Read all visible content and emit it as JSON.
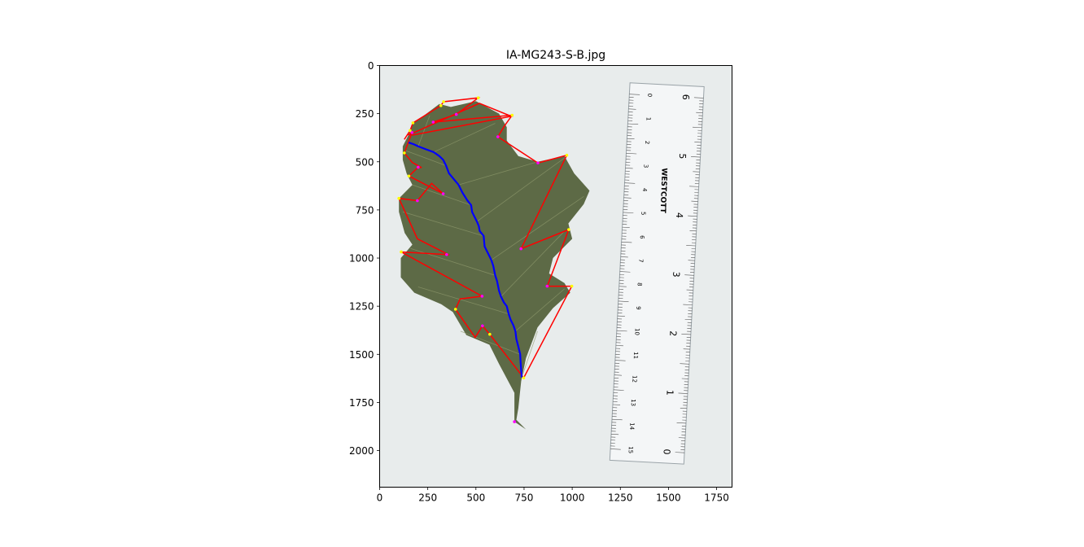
{
  "chart_data": {
    "type": "image",
    "title": "IA-MG243-S-B.jpg",
    "xlim": [
      0,
      1830
    ],
    "ylim": [
      2190,
      0
    ],
    "xticks": [
      0,
      250,
      500,
      750,
      1000,
      1250,
      1500,
      1750
    ],
    "yticks": [
      0,
      250,
      500,
      750,
      1000,
      1250,
      1500,
      1750,
      2000
    ],
    "grid": false,
    "leaf_outline": [
      [
        170,
        300
      ],
      [
        230,
        260
      ],
      [
        310,
        200
      ],
      [
        370,
        215
      ],
      [
        500,
        185
      ],
      [
        620,
        250
      ],
      [
        660,
        320
      ],
      [
        660,
        390
      ],
      [
        720,
        470
      ],
      [
        820,
        500
      ],
      [
        960,
        470
      ],
      [
        1010,
        560
      ],
      [
        1090,
        650
      ],
      [
        1060,
        720
      ],
      [
        980,
        820
      ],
      [
        1000,
        900
      ],
      [
        900,
        1000
      ],
      [
        880,
        1080
      ],
      [
        960,
        1130
      ],
      [
        990,
        1180
      ],
      [
        900,
        1260
      ],
      [
        820,
        1360
      ],
      [
        760,
        1520
      ],
      [
        735,
        1640
      ],
      [
        720,
        1780
      ],
      [
        710,
        1840
      ],
      [
        760,
        1890
      ],
      [
        700,
        1850
      ],
      [
        700,
        1700
      ],
      [
        620,
        1550
      ],
      [
        570,
        1450
      ],
      [
        450,
        1400
      ],
      [
        380,
        1280
      ],
      [
        320,
        1240
      ],
      [
        180,
        1180
      ],
      [
        110,
        1100
      ],
      [
        110,
        1000
      ],
      [
        170,
        930
      ],
      [
        130,
        870
      ],
      [
        100,
        760
      ],
      [
        100,
        690
      ],
      [
        170,
        620
      ],
      [
        140,
        560
      ],
      [
        120,
        490
      ],
      [
        120,
        420
      ],
      [
        150,
        360
      ]
    ],
    "hull_outline": [
      [
        128,
        384
      ],
      [
        158,
        338
      ],
      [
        173,
        298
      ],
      [
        318,
        208
      ],
      [
        332,
        188
      ],
      [
        512,
        168
      ],
      [
        398,
        254
      ],
      [
        278,
        294
      ],
      [
        688,
        258
      ],
      [
        648,
        314
      ],
      [
        614,
        370
      ],
      [
        822,
        506
      ],
      [
        972,
        466
      ],
      [
        734,
        952
      ],
      [
        982,
        852
      ],
      [
        870,
        1146
      ],
      [
        998,
        1146
      ],
      [
        748,
        1622
      ],
      [
        572,
        1396
      ],
      [
        534,
        1352
      ],
      [
        496,
        1412
      ],
      [
        394,
        1266
      ],
      [
        418,
        1212
      ],
      [
        532,
        1198
      ],
      [
        112,
        968
      ],
      [
        348,
        982
      ],
      [
        360,
        984
      ],
      [
        196,
        900
      ],
      [
        100,
        690
      ],
      [
        196,
        702
      ],
      [
        270,
        612
      ],
      [
        330,
        666
      ],
      [
        152,
        574
      ],
      [
        200,
        528
      ],
      [
        218,
        530
      ],
      [
        170,
        504
      ],
      [
        128,
        454
      ],
      [
        168,
        348
      ],
      [
        148,
        362
      ],
      [
        518,
        196
      ],
      [
        684,
        264
      ],
      [
        168,
        362
      ]
    ],
    "midrib_path": [
      [
        150,
        400
      ],
      [
        180,
        410
      ],
      [
        200,
        420
      ],
      [
        240,
        435
      ],
      [
        280,
        450
      ],
      [
        310,
        470
      ],
      [
        330,
        490
      ],
      [
        345,
        520
      ],
      [
        360,
        560
      ],
      [
        385,
        590
      ],
      [
        410,
        620
      ],
      [
        430,
        660
      ],
      [
        455,
        700
      ],
      [
        475,
        725
      ],
      [
        480,
        760
      ],
      [
        495,
        790
      ],
      [
        505,
        810
      ],
      [
        515,
        835
      ],
      [
        520,
        860
      ],
      [
        540,
        885
      ],
      [
        545,
        940
      ],
      [
        560,
        970
      ],
      [
        580,
        1010
      ],
      [
        590,
        1040
      ],
      [
        600,
        1090
      ],
      [
        610,
        1120
      ],
      [
        620,
        1170
      ],
      [
        630,
        1200
      ],
      [
        645,
        1230
      ],
      [
        660,
        1250
      ],
      [
        670,
        1290
      ],
      [
        680,
        1320
      ],
      [
        695,
        1350
      ],
      [
        705,
        1380
      ],
      [
        710,
        1420
      ],
      [
        720,
        1460
      ],
      [
        730,
        1500
      ],
      [
        732,
        1540
      ],
      [
        735,
        1580
      ],
      [
        738,
        1620
      ]
    ],
    "hull_vertices": [
      [
        158,
        338
      ],
      [
        173,
        298
      ],
      [
        318,
        208
      ],
      [
        332,
        188
      ],
      [
        512,
        168
      ],
      [
        688,
        258
      ],
      [
        972,
        466
      ],
      [
        982,
        852
      ],
      [
        998,
        1146
      ],
      [
        748,
        1622
      ],
      [
        572,
        1396
      ],
      [
        394,
        1266
      ],
      [
        112,
        968
      ],
      [
        100,
        690
      ],
      [
        152,
        574
      ],
      [
        128,
        454
      ]
    ],
    "sinus_points": [
      [
        398,
        254
      ],
      [
        278,
        294
      ],
      [
        614,
        370
      ],
      [
        822,
        506
      ],
      [
        734,
        952
      ],
      [
        870,
        1146
      ],
      [
        534,
        1352
      ],
      [
        532,
        1198
      ],
      [
        348,
        982
      ],
      [
        196,
        702
      ],
      [
        330,
        666
      ],
      [
        200,
        528
      ],
      [
        168,
        348
      ],
      [
        700,
        1850
      ]
    ],
    "ruler": {
      "corners": [
        [
          1300,
          90
        ],
        [
          1685,
          110
        ],
        [
          1580,
          2070
        ],
        [
          1195,
          2050
        ]
      ],
      "inch_labels": [
        "6",
        "5",
        "4",
        "3",
        "2",
        "1",
        "0"
      ],
      "cm_labels": [
        "0",
        "1",
        "2",
        "3",
        "4",
        "5",
        "6",
        "7",
        "8",
        "9",
        "10",
        "11",
        "12",
        "13",
        "14",
        "15"
      ],
      "brand_text": "WESTCOTT"
    },
    "colors": {
      "background": "#e8ecec",
      "leaf": "#5d6a46",
      "leaf_vein": "#8f9a6d",
      "hull_line": "#ff0000",
      "midrib_line": "#0000ff",
      "vertex_marker": "#ffff00",
      "sinus_marker": "#ff00ff"
    }
  }
}
